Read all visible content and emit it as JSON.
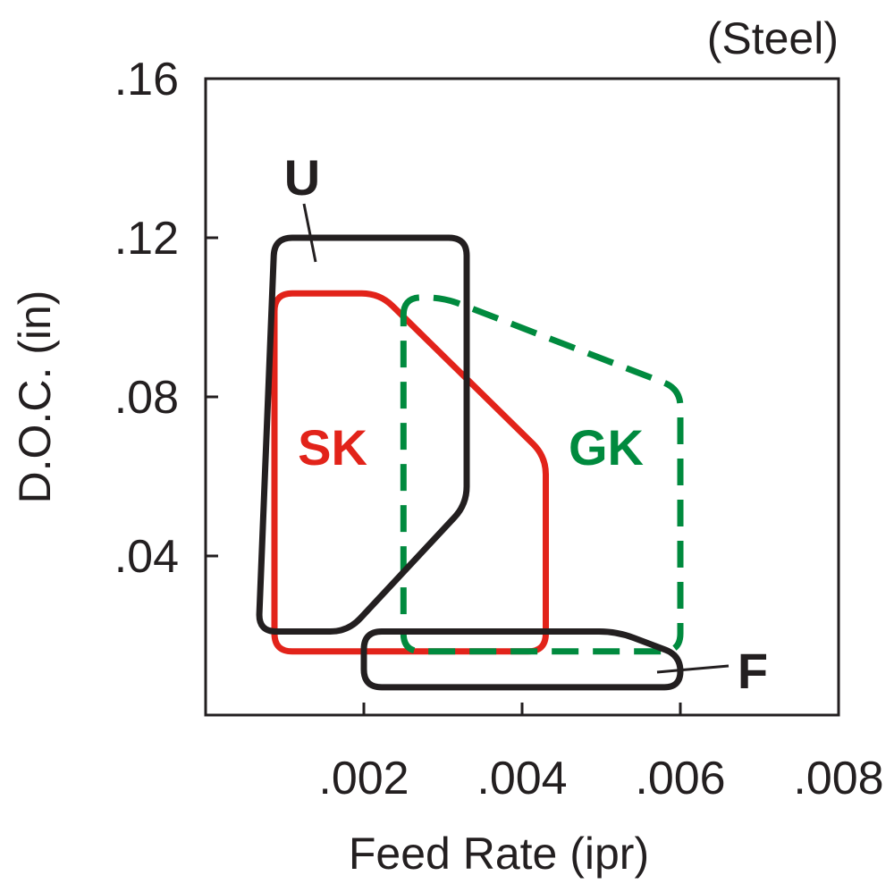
{
  "chart_data": {
    "type": "area",
    "title": "(Steel)",
    "xlabel": "Feed Rate (ipr)",
    "ylabel": "D.O.C. (in)",
    "xlim": [
      0,
      0.008
    ],
    "ylim": [
      0,
      0.16
    ],
    "x_ticks": [
      {
        "value": 0.002,
        "label": ".002"
      },
      {
        "value": 0.004,
        "label": ".004"
      },
      {
        "value": 0.006,
        "label": ".006"
      },
      {
        "value": 0.008,
        "label": ".008"
      }
    ],
    "y_ticks": [
      {
        "value": 0.04,
        "label": ".04"
      },
      {
        "value": 0.08,
        "label": ".08"
      },
      {
        "value": 0.12,
        "label": ".12"
      },
      {
        "value": 0.16,
        "label": ".16"
      }
    ],
    "grid": false,
    "series": [
      {
        "name": "U",
        "color": "#231f20",
        "dashed": false,
        "points": [
          [
            0.00087,
            0.12
          ],
          [
            0.0033,
            0.12
          ],
          [
            0.0033,
            0.053
          ],
          [
            0.0018,
            0.021
          ],
          [
            0.00067,
            0.021
          ]
        ]
      },
      {
        "name": "SK",
        "color": "#e2231a",
        "dashed": false,
        "points": [
          [
            0.00087,
            0.106
          ],
          [
            0.0022,
            0.106
          ],
          [
            0.0043,
            0.065
          ],
          [
            0.0043,
            0.016
          ],
          [
            0.00087,
            0.016
          ]
        ]
      },
      {
        "name": "GK",
        "color": "#008a3e",
        "dashed": true,
        "points": [
          [
            0.0025,
            0.105
          ],
          [
            0.003,
            0.105
          ],
          [
            0.006,
            0.082
          ],
          [
            0.006,
            0.016
          ],
          [
            0.0025,
            0.016
          ]
        ]
      },
      {
        "name": "F",
        "color": "#231f20",
        "dashed": false,
        "points": [
          [
            0.002,
            0.021
          ],
          [
            0.0052,
            0.021
          ],
          [
            0.006,
            0.015
          ],
          [
            0.006,
            0.007
          ],
          [
            0.002,
            0.007
          ]
        ]
      }
    ]
  }
}
